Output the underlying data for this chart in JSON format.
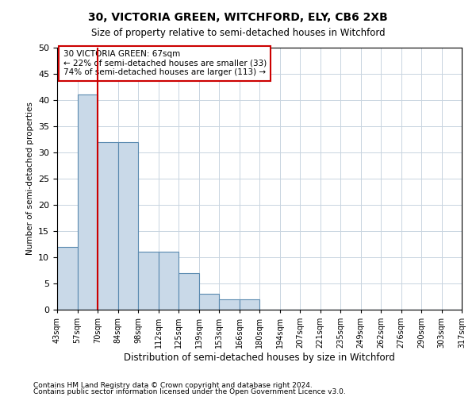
{
  "title1": "30, VICTORIA GREEN, WITCHFORD, ELY, CB6 2XB",
  "title2": "Size of property relative to semi-detached houses in Witchford",
  "xlabel": "Distribution of semi-detached houses by size in Witchford",
  "ylabel": "Number of semi-detached properties",
  "bins": [
    "43sqm",
    "57sqm",
    "70sqm",
    "84sqm",
    "98sqm",
    "112sqm",
    "125sqm",
    "139sqm",
    "153sqm",
    "166sqm",
    "180sqm",
    "194sqm",
    "207sqm",
    "221sqm",
    "235sqm",
    "249sqm",
    "262sqm",
    "276sqm",
    "290sqm",
    "303sqm",
    "317sqm"
  ],
  "values": [
    12,
    41,
    32,
    32,
    11,
    11,
    7,
    3,
    2,
    2,
    0,
    0,
    0,
    0,
    0,
    0,
    0,
    0,
    0,
    0
  ],
  "bar_color": "#c9d9e8",
  "bar_edge_color": "#5a8ab0",
  "highlight_line_color": "#cc0000",
  "annotation_text": "30 VICTORIA GREEN: 67sqm\n← 22% of semi-detached houses are smaller (33)\n74% of semi-detached houses are larger (113) →",
  "annotation_box_color": "#ffffff",
  "annotation_box_edge_color": "#cc0000",
  "ylim": [
    0,
    50
  ],
  "yticks": [
    0,
    5,
    10,
    15,
    20,
    25,
    30,
    35,
    40,
    45,
    50
  ],
  "footer1": "Contains HM Land Registry data © Crown copyright and database right 2024.",
  "footer2": "Contains public sector information licensed under the Open Government Licence v3.0.",
  "bg_color": "#ffffff",
  "grid_color": "#c8d4e0"
}
